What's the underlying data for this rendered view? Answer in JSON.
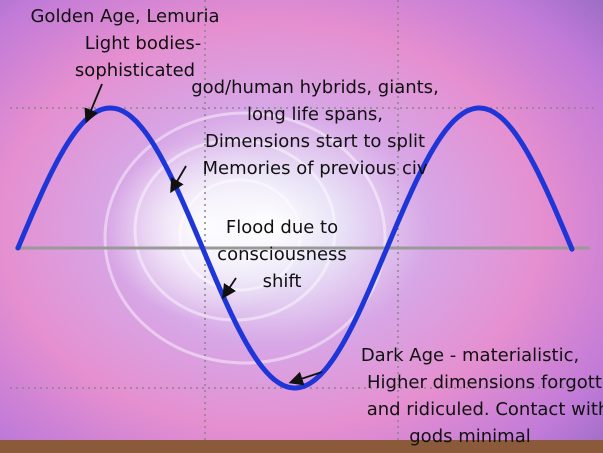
{
  "labels": {
    "golden_age": [
      "Golden Age, Lemuria",
      "Light bodies-",
      "sophisticated"
    ],
    "hybrids": [
      "god/human hybrids, giants,",
      "long life spans,",
      "Dimensions start to split",
      "Memories of previous civ"
    ],
    "flood": [
      "Flood due to",
      "consciousness",
      "shift"
    ],
    "dark_age": [
      "Dark Age - materialistic,",
      "Higher dimensions forgotte",
      "and ridiculed. Contact with",
      "gods minimal"
    ]
  }
}
